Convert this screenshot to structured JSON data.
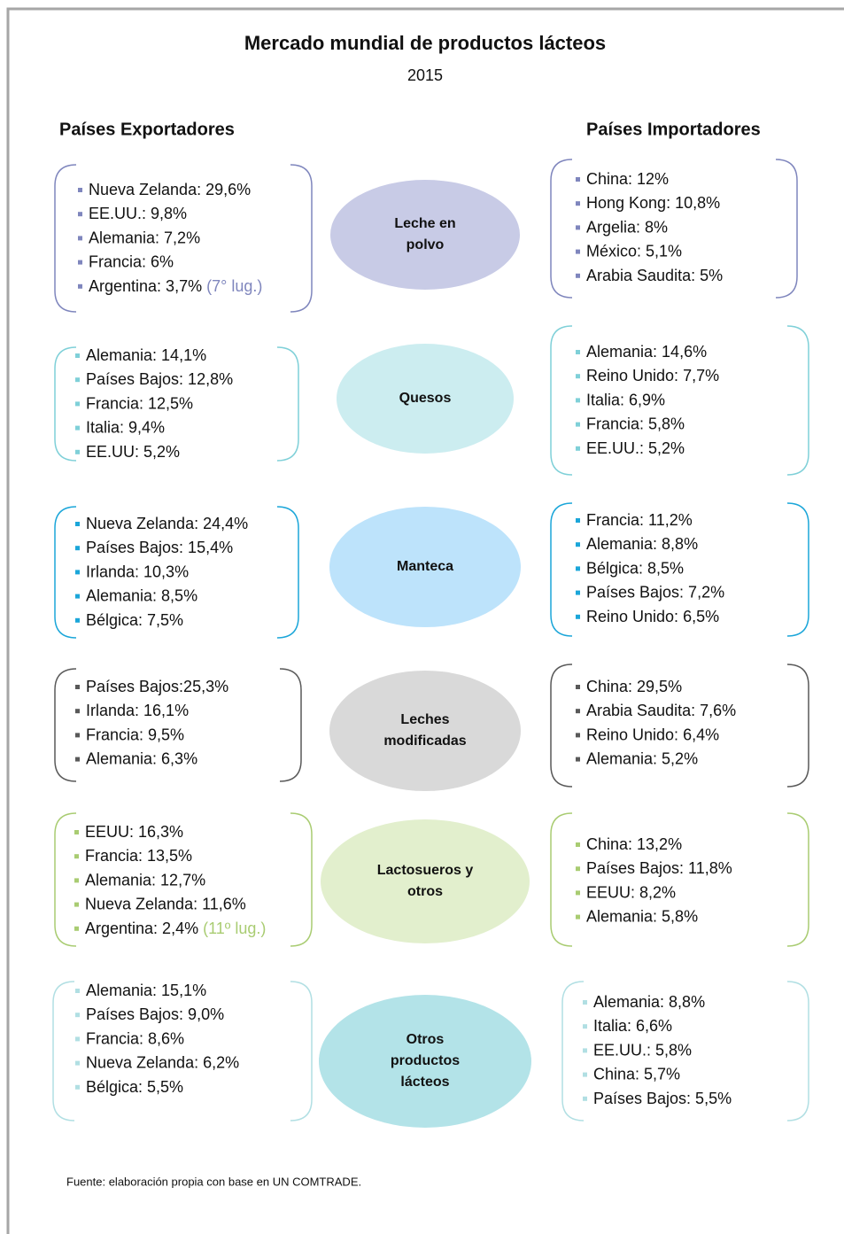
{
  "title": "Mercado mundial  de productos  lácteos",
  "subtitle": "2015",
  "headers": {
    "exporters": "Países Exportadores",
    "importers": "Países Importadores"
  },
  "rows": [
    {
      "product": [
        "Leche en",
        "polvo"
      ],
      "exporters": [
        "Nueva Zelanda: 29,6%",
        "EE.UU.:  9,8%",
        "Alemania: 7,2%",
        "Francia: 6%",
        "Argentina: 3,7%"
      ],
      "note": "(7° lug.)",
      "importers": [
        "China: 12%",
        "Hong Kong: 10,8%",
        "Argelia: 8%",
        "México: 5,1%",
        "Arabia Saudita:  5%"
      ]
    },
    {
      "product": [
        "Quesos"
      ],
      "exporters": [
        "Alemania: 14,1%",
        "Países Bajos:  12,8%",
        "Francia: 12,5%",
        "Italia: 9,4%",
        "EE.UU:  5,2%"
      ],
      "importers": [
        "Alemania: 14,6%",
        "Reino Unido: 7,7%",
        "Italia: 6,9%",
        "Francia: 5,8%",
        "EE.UU.:  5,2%"
      ]
    },
    {
      "product": [
        "Manteca"
      ],
      "exporters": [
        "Nueva Zelanda: 24,4%",
        "Países Bajos: 15,4%",
        "Irlanda: 10,3%",
        "Alemania:  8,5%",
        "Bélgica: 7,5%"
      ],
      "importers": [
        "Francia: 11,2%",
        "Alemania: 8,8%",
        "Bélgica: 8,5%",
        "Países Bajos: 7,2%",
        "Reino Unido: 6,5%"
      ]
    },
    {
      "product": [
        "Leches",
        "modificadas"
      ],
      "exporters": [
        "Países Bajos:25,3%",
        "Irlanda: 16,1%",
        "Francia: 9,5%",
        "Alemania: 6,3%"
      ],
      "importers": [
        "China: 29,5%",
        "Arabia Saudita:  7,6%",
        "Reino Unido: 6,4%",
        "Alemania: 5,2%"
      ]
    },
    {
      "product": [
        "Lactosueros y",
        "otros"
      ],
      "exporters": [
        "EEUU:  16,3%",
        "Francia: 13,5%",
        "Alemania: 12,7%",
        "Nueva Zelanda: 11,6%",
        "Argentina: 2,4%"
      ],
      "note": "(11º lug.)",
      "importers": [
        "China: 13,2%",
        "Países Bajos: 11,8%",
        "EEUU: 8,2%",
        "Alemania: 5,8%"
      ]
    },
    {
      "product": [
        "Otros",
        "productos",
        "lácteos"
      ],
      "exporters": [
        "Alemania: 15,1%",
        "Países Bajos: 9,0%",
        "Francia: 8,6%",
        "Nueva Zelanda: 6,2%",
        "Bélgica: 5,5%"
      ],
      "importers": [
        "Alemania: 8,8%",
        "Italia: 6,6%",
        "EE.UU.: 5,8%",
        "China:  5,7%",
        "Países Bajos: 5,5%"
      ]
    }
  ],
  "footer": "Fuente: elaboración propia con base en UN COMTRADE."
}
